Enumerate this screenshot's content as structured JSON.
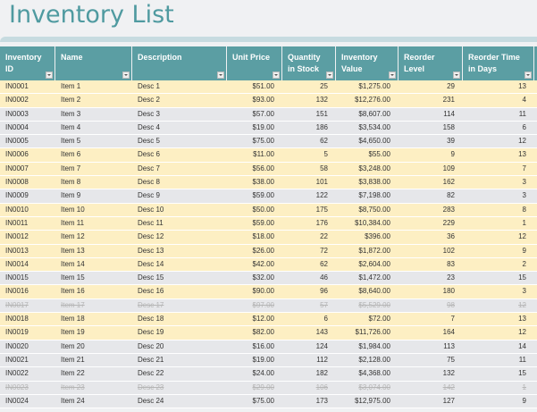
{
  "title": "Inventory List",
  "colors": {
    "title": "#4f9aa0",
    "header_bg": "#5b9ea3",
    "row_yellow": "#fdefc3",
    "row_gray": "#e6e7ea",
    "struck_text": "#b5b5b5"
  },
  "columns": [
    {
      "label": "Inventory ID",
      "line1": "Inventory",
      "line2": "ID"
    },
    {
      "label": "Name",
      "line1": "Name",
      "line2": ""
    },
    {
      "label": "Description",
      "line1": "Description",
      "line2": ""
    },
    {
      "label": "Unit Price",
      "line1": "Unit Price",
      "line2": ""
    },
    {
      "label": "Quantity in Stock",
      "line1": "Quantity",
      "line2": "in Stock"
    },
    {
      "label": "Inventory Value",
      "line1": "Inventory",
      "line2": "Value"
    },
    {
      "label": "Reorder Level",
      "line1": "Reorder",
      "line2": "Level"
    },
    {
      "label": "Reorder Time in Days",
      "line1": "Reorder Time",
      "line2": "in Days"
    }
  ],
  "rows": [
    {
      "id": "IN0001",
      "name": "Item 1",
      "desc": "Desc 1",
      "price": "$51.00",
      "qty": "25",
      "value": "$1,275.00",
      "level": "29",
      "days": "13",
      "style": "yellow",
      "struck": false
    },
    {
      "id": "IN0002",
      "name": "Item 2",
      "desc": "Desc 2",
      "price": "$93.00",
      "qty": "132",
      "value": "$12,276.00",
      "level": "231",
      "days": "4",
      "style": "yellow",
      "struck": false
    },
    {
      "id": "IN0003",
      "name": "Item 3",
      "desc": "Desc 3",
      "price": "$57.00",
      "qty": "151",
      "value": "$8,607.00",
      "level": "114",
      "days": "11",
      "style": "gray",
      "struck": false
    },
    {
      "id": "IN0004",
      "name": "Item 4",
      "desc": "Desc 4",
      "price": "$19.00",
      "qty": "186",
      "value": "$3,534.00",
      "level": "158",
      "days": "6",
      "style": "gray",
      "struck": false
    },
    {
      "id": "IN0005",
      "name": "Item 5",
      "desc": "Desc 5",
      "price": "$75.00",
      "qty": "62",
      "value": "$4,650.00",
      "level": "39",
      "days": "12",
      "style": "gray",
      "struck": false
    },
    {
      "id": "IN0006",
      "name": "Item 6",
      "desc": "Desc 6",
      "price": "$11.00",
      "qty": "5",
      "value": "$55.00",
      "level": "9",
      "days": "13",
      "style": "yellow",
      "struck": false
    },
    {
      "id": "IN0007",
      "name": "Item 7",
      "desc": "Desc 7",
      "price": "$56.00",
      "qty": "58",
      "value": "$3,248.00",
      "level": "109",
      "days": "7",
      "style": "yellow",
      "struck": false
    },
    {
      "id": "IN0008",
      "name": "Item 8",
      "desc": "Desc 8",
      "price": "$38.00",
      "qty": "101",
      "value": "$3,838.00",
      "level": "162",
      "days": "3",
      "style": "yellow",
      "struck": false
    },
    {
      "id": "IN0009",
      "name": "Item 9",
      "desc": "Desc 9",
      "price": "$59.00",
      "qty": "122",
      "value": "$7,198.00",
      "level": "82",
      "days": "3",
      "style": "gray",
      "struck": false
    },
    {
      "id": "IN0010",
      "name": "Item 10",
      "desc": "Desc 10",
      "price": "$50.00",
      "qty": "175",
      "value": "$8,750.00",
      "level": "283",
      "days": "8",
      "style": "yellow",
      "struck": false
    },
    {
      "id": "IN0011",
      "name": "Item 11",
      "desc": "Desc 11",
      "price": "$59.00",
      "qty": "176",
      "value": "$10,384.00",
      "level": "229",
      "days": "1",
      "style": "yellow",
      "struck": false
    },
    {
      "id": "IN0012",
      "name": "Item 12",
      "desc": "Desc 12",
      "price": "$18.00",
      "qty": "22",
      "value": "$396.00",
      "level": "36",
      "days": "12",
      "style": "yellow",
      "struck": false
    },
    {
      "id": "IN0013",
      "name": "Item 13",
      "desc": "Desc 13",
      "price": "$26.00",
      "qty": "72",
      "value": "$1,872.00",
      "level": "102",
      "days": "9",
      "style": "yellow",
      "struck": false
    },
    {
      "id": "IN0014",
      "name": "Item 14",
      "desc": "Desc 14",
      "price": "$42.00",
      "qty": "62",
      "value": "$2,604.00",
      "level": "83",
      "days": "2",
      "style": "yellow",
      "struck": false
    },
    {
      "id": "IN0015",
      "name": "Item 15",
      "desc": "Desc 15",
      "price": "$32.00",
      "qty": "46",
      "value": "$1,472.00",
      "level": "23",
      "days": "15",
      "style": "gray",
      "struck": false
    },
    {
      "id": "IN0016",
      "name": "Item 16",
      "desc": "Desc 16",
      "price": "$90.00",
      "qty": "96",
      "value": "$8,640.00",
      "level": "180",
      "days": "3",
      "style": "yellow",
      "struck": false
    },
    {
      "id": "IN0017",
      "name": "Item 17",
      "desc": "Desc 17",
      "price": "$97.00",
      "qty": "57",
      "value": "$5,529.00",
      "level": "98",
      "days": "12",
      "style": "gray",
      "struck": true
    },
    {
      "id": "IN0018",
      "name": "Item 18",
      "desc": "Desc 18",
      "price": "$12.00",
      "qty": "6",
      "value": "$72.00",
      "level": "7",
      "days": "13",
      "style": "yellow",
      "struck": false
    },
    {
      "id": "IN0019",
      "name": "Item 19",
      "desc": "Desc 19",
      "price": "$82.00",
      "qty": "143",
      "value": "$11,726.00",
      "level": "164",
      "days": "12",
      "style": "yellow",
      "struck": false
    },
    {
      "id": "IN0020",
      "name": "Item 20",
      "desc": "Desc 20",
      "price": "$16.00",
      "qty": "124",
      "value": "$1,984.00",
      "level": "113",
      "days": "14",
      "style": "gray",
      "struck": false
    },
    {
      "id": "IN0021",
      "name": "Item 21",
      "desc": "Desc 21",
      "price": "$19.00",
      "qty": "112",
      "value": "$2,128.00",
      "level": "75",
      "days": "11",
      "style": "gray",
      "struck": false
    },
    {
      "id": "IN0022",
      "name": "Item 22",
      "desc": "Desc 22",
      "price": "$24.00",
      "qty": "182",
      "value": "$4,368.00",
      "level": "132",
      "days": "15",
      "style": "gray",
      "struck": false
    },
    {
      "id": "IN0023",
      "name": "Item 23",
      "desc": "Desc 23",
      "price": "$29.00",
      "qty": "106",
      "value": "$3,074.00",
      "level": "142",
      "days": "1",
      "style": "gray",
      "struck": true
    },
    {
      "id": "IN0024",
      "name": "Item 24",
      "desc": "Desc 24",
      "price": "$75.00",
      "qty": "173",
      "value": "$12,975.00",
      "level": "127",
      "days": "9",
      "style": "gray",
      "struck": false
    }
  ]
}
